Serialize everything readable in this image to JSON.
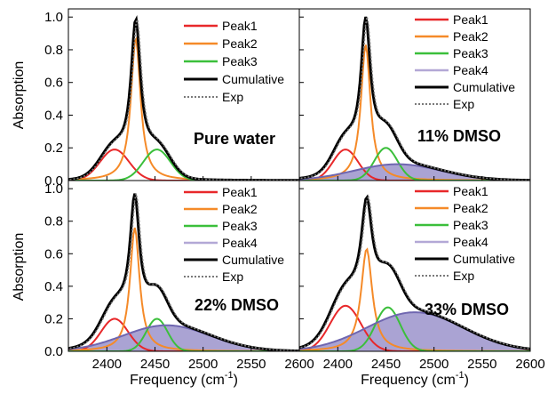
{
  "figure": {
    "ylabel": "Absorption",
    "xlabel_main": "Frequency (cm",
    "xlabel_sup": "-1",
    "xlabel_close": ")",
    "x_ticks": [
      "2400",
      "2450",
      "2500",
      "2550",
      "2600"
    ],
    "y_ticks": [
      "0.0",
      "0.2",
      "0.4",
      "0.6",
      "0.8",
      "1.0"
    ]
  },
  "colors": {
    "peak1": "#e8282a",
    "peak2": "#f58a28",
    "peak3": "#3bbf3b",
    "peak4": "#b3a8d6",
    "peak4_fill": "#8d84c4",
    "cumulative": "#000000",
    "exp": "#7a7a7a"
  },
  "chart_data": [
    {
      "type": "line",
      "panel_label": "Pure water",
      "xlim": [
        2360,
        2600
      ],
      "ylim": [
        0,
        1.05
      ],
      "legend": [
        "Peak1",
        "Peak2",
        "Peak3",
        "Cumulative",
        "Exp"
      ],
      "series": [
        {
          "name": "Peak1",
          "shape": "gauss",
          "center": 2408,
          "height": 0.19,
          "width": 15
        },
        {
          "name": "Peak2",
          "shape": "lorentz",
          "center": 2430,
          "height": 0.87,
          "width": 6
        },
        {
          "name": "Peak3",
          "shape": "gauss",
          "center": 2452,
          "height": 0.19,
          "width": 14
        }
      ]
    },
    {
      "type": "line",
      "panel_label": "11% DMSO",
      "xlim": [
        2360,
        2600
      ],
      "ylim": [
        0,
        1.05
      ],
      "legend": [
        "Peak1",
        "Peak2",
        "Peak3",
        "Peak4",
        "Cumulative",
        "Exp"
      ],
      "series": [
        {
          "name": "Peak1",
          "shape": "gauss",
          "center": 2408,
          "height": 0.19,
          "width": 13
        },
        {
          "name": "Peak2",
          "shape": "lorentz",
          "center": 2429,
          "height": 0.83,
          "width": 6
        },
        {
          "name": "Peak3",
          "shape": "gauss",
          "center": 2450,
          "height": 0.2,
          "width": 12
        },
        {
          "name": "Peak4",
          "shape": "gauss",
          "center": 2462,
          "height": 0.1,
          "width": 45
        }
      ]
    },
    {
      "type": "line",
      "panel_label": "22% DMSO",
      "xlim": [
        2360,
        2600
      ],
      "ylim": [
        0,
        1.05
      ],
      "legend": [
        "Peak1",
        "Peak2",
        "Peak3",
        "Peak4",
        "Cumulative",
        "Exp"
      ],
      "series": [
        {
          "name": "Peak1",
          "shape": "gauss",
          "center": 2408,
          "height": 0.2,
          "width": 14
        },
        {
          "name": "Peak2",
          "shape": "lorentz",
          "center": 2429,
          "height": 0.76,
          "width": 6
        },
        {
          "name": "Peak3",
          "shape": "gauss",
          "center": 2452,
          "height": 0.2,
          "width": 11
        },
        {
          "name": "Peak4",
          "shape": "gauss",
          "center": 2462,
          "height": 0.16,
          "width": 45
        }
      ]
    },
    {
      "type": "line",
      "panel_label": "33% DMSO",
      "xlim": [
        2360,
        2600
      ],
      "ylim": [
        0,
        1.05
      ],
      "legend": [
        "Peak1",
        "Peak2",
        "Peak3",
        "Peak4",
        "Cumulative",
        "Exp"
      ],
      "series": [
        {
          "name": "Peak1",
          "shape": "gauss",
          "center": 2408,
          "height": 0.28,
          "width": 16
        },
        {
          "name": "Peak2",
          "shape": "lorentz",
          "center": 2430,
          "height": 0.63,
          "width": 7
        },
        {
          "name": "Peak3",
          "shape": "gauss",
          "center": 2452,
          "height": 0.27,
          "width": 13
        },
        {
          "name": "Peak4",
          "shape": "gauss",
          "center": 2480,
          "height": 0.24,
          "width": 50
        }
      ]
    }
  ]
}
